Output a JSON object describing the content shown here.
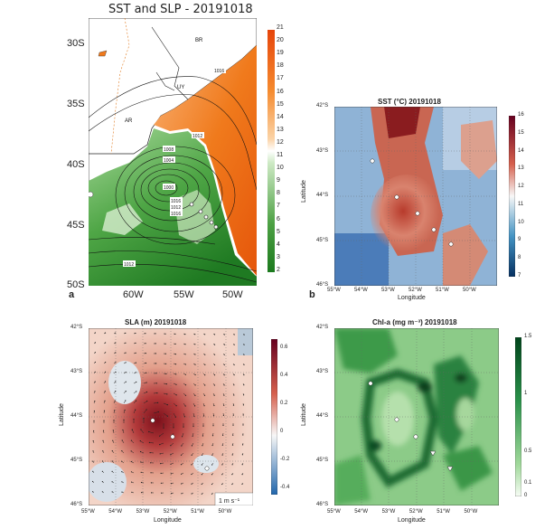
{
  "panel_a": {
    "title": "SST and SLP - 20191018",
    "label": "a",
    "lat_ticks": [
      "30S",
      "35S",
      "40S",
      "45S",
      "50S"
    ],
    "lon_ticks": [
      "60W",
      "55W",
      "50W"
    ],
    "colorbar_ticks": [
      "21",
      "20",
      "19",
      "18",
      "17",
      "16",
      "15",
      "14",
      "13",
      "12",
      "11",
      "10",
      "9",
      "8",
      "7",
      "6",
      "5",
      "4",
      "3",
      "2"
    ],
    "region_labels": [
      "BR",
      "UY",
      "AR"
    ],
    "contour_labels": [
      "1016",
      "1012",
      "1008",
      "1004",
      "1000",
      "1016",
      "1012",
      "1016",
      "1012"
    ]
  },
  "panel_b": {
    "title": "SST (°C) 20191018",
    "label": "b",
    "lat_ticks": [
      "42°S",
      "43°S",
      "44°S",
      "45°S",
      "46°S"
    ],
    "lon_ticks": [
      "55°W",
      "54°W",
      "53°W",
      "52°W",
      "51°W",
      "50°W"
    ],
    "xlabel": "Longitude",
    "ylabel": "Latitude",
    "colorbar_ticks": [
      "16",
      "15",
      "14",
      "13",
      "12",
      "11",
      "10",
      "9",
      "8",
      "7"
    ]
  },
  "panel_c": {
    "title": "SLA (m) 20191018",
    "lat_ticks": [
      "42°S",
      "43°S",
      "44°S",
      "45°S",
      "46°S"
    ],
    "lon_ticks": [
      "55°W",
      "54°W",
      "53°W",
      "52°W",
      "51°W",
      "50°W"
    ],
    "xlabel": "Longitude",
    "ylabel": "Latitude",
    "colorbar_ticks": [
      "0.6",
      "0.4",
      "0.2",
      "0",
      "-0.2",
      "-0.4"
    ],
    "scale_label": "1 m s⁻¹"
  },
  "panel_d": {
    "title": "Chl-a (mg m⁻³) 20191018",
    "lat_ticks": [
      "42°S",
      "43°S",
      "44°S",
      "45°S",
      "46°S"
    ],
    "lon_ticks": [
      "55°W",
      "54°W",
      "53°W",
      "52°W",
      "51°W",
      "50°W"
    ],
    "xlabel": "Longitude",
    "ylabel": "Latitude",
    "colorbar_ticks": [
      "1.5",
      "1",
      "0.5",
      "0.1",
      "0"
    ]
  },
  "colors": {
    "sst_warm": "#c44a3a",
    "sst_cold": "#2f5fa8",
    "sla_pos": "#7d1a1e",
    "chl_high": "#0d4d24",
    "chl_low": "#9ed49a",
    "pa_orange": "#f07a1c",
    "pa_green": "#2e8a2c"
  }
}
